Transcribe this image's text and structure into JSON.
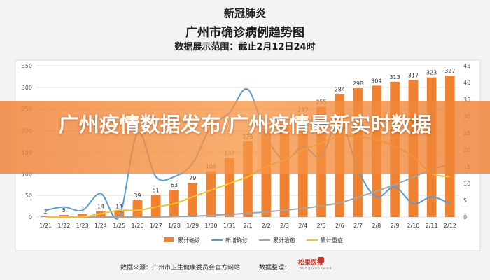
{
  "header": {
    "line1": "新冠肺炎",
    "line2": "广州市确诊病例趋势图",
    "line3": "数据展示范围：截止2月12日24时"
  },
  "overlay": {
    "text": "广州疫情数据发布/广州疫情最新实时数据"
  },
  "footer": {
    "source": "数据来源：广州市卫生健康委员会官方网站",
    "organizer": "数据整理：",
    "logo_text": "松果医报",
    "logo_sub": "SongGuoRead"
  },
  "colors": {
    "bar": "#ef8130",
    "new_confirmed": "#5b9bd5",
    "cured": "#a5a5a5",
    "severe": "#f2c230"
  },
  "chart_data": {
    "type": "bar",
    "categories": [
      "1/21",
      "1/22",
      "1/23",
      "1/24",
      "1/25",
      "1/26",
      "1/27",
      "1/28",
      "1/29",
      "1/30",
      "1/31",
      "2/1",
      "2/2",
      "2/3",
      "2/4",
      "2/5",
      "2/6",
      "2/7",
      "2/8",
      "2/9",
      "2/10",
      "2/11",
      "2/12"
    ],
    "ylim": [
      0,
      350
    ],
    "y2lim": [
      0,
      45
    ],
    "yticks": [
      0,
      50,
      100,
      150,
      200,
      250,
      300,
      350
    ],
    "y2ticks": [
      0,
      5,
      10,
      15,
      20,
      25,
      30,
      35,
      40,
      45
    ],
    "grid": true,
    "legend_position": "bottom",
    "series": [
      {
        "name": "累计确诊",
        "type": "bar",
        "axis": "left",
        "values": [
          2,
          5,
          7,
          14,
          14,
          39,
          51,
          63,
          79,
          106,
          137,
          175,
          199,
          216,
          237,
          255,
          284,
          298,
          304,
          313,
          317,
          323,
          327
        ]
      },
      {
        "name": "新增确诊",
        "type": "line",
        "axis": "right",
        "values": [
          2,
          3,
          2,
          7,
          0,
          25,
          12,
          12,
          16,
          27,
          31,
          38,
          24,
          17,
          21,
          18,
          29,
          14,
          6,
          9,
          4,
          6,
          4
        ]
      },
      {
        "name": "累计治愈",
        "type": "line",
        "axis": "left",
        "values": [
          0,
          0,
          0,
          0,
          0,
          0,
          0,
          1,
          2,
          4,
          6,
          9,
          12,
          16,
          20,
          26,
          33,
          46,
          60,
          75,
          92,
          110,
          122
        ]
      },
      {
        "name": "累计重症",
        "type": "line",
        "axis": "right",
        "values": [
          0,
          0,
          0,
          1,
          2,
          2,
          3,
          4,
          6,
          8,
          10,
          12,
          15,
          17,
          20,
          22,
          24,
          24,
          23,
          21,
          18,
          13,
          12
        ]
      }
    ],
    "data_labels": [
      2,
      5,
      7,
      14,
      14,
      39,
      51,
      63,
      79,
      106,
      137,
      175,
      199,
      216,
      237,
      255,
      284,
      298,
      304,
      313,
      317,
      323,
      327
    ]
  }
}
